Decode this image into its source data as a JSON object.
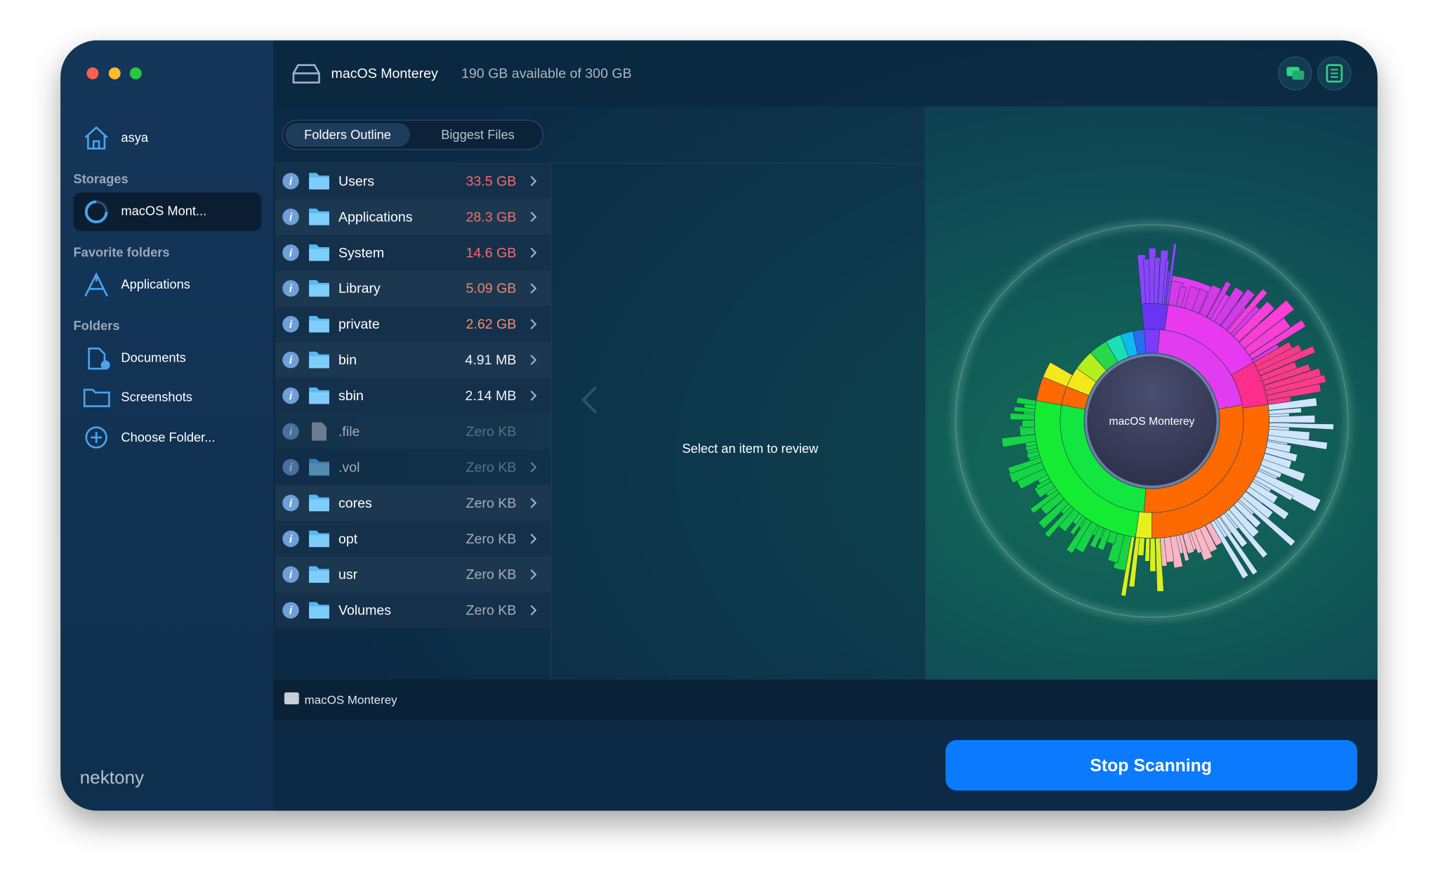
{
  "sidebar": {
    "user": "asya",
    "storages_label": "Storages",
    "storage": "macOS Mont...",
    "favorites_label": "Favorite folders",
    "favorites": [
      "Applications"
    ],
    "folders_label": "Folders",
    "folders": [
      "Documents",
      "Screenshots",
      "Choose Folder..."
    ],
    "logo": "nektony"
  },
  "header": {
    "disk": "macOS Monterey",
    "space": "190 GB available of 300 GB"
  },
  "tabs": [
    "Folders Outline",
    "Biggest Files"
  ],
  "rows": [
    {
      "name": "Users",
      "size": "33.5 GB"
    },
    {
      "name": "Applications",
      "size": "28.3 GB"
    },
    {
      "name": "System",
      "size": "14.6 GB"
    },
    {
      "name": "Library",
      "size": "5.09 GB"
    },
    {
      "name": "private",
      "size": "2.62 GB"
    },
    {
      "name": "bin",
      "size": "4.91 MB"
    },
    {
      "name": "sbin",
      "size": "2.14 MB"
    },
    {
      "name": ".file",
      "size": "Zero KB"
    },
    {
      "name": ".vol",
      "size": "Zero KB"
    },
    {
      "name": "cores",
      "size": "Zero KB"
    },
    {
      "name": "opt",
      "size": "Zero KB"
    },
    {
      "name": "usr",
      "size": "Zero KB"
    },
    {
      "name": "Volumes",
      "size": "Zero KB"
    }
  ],
  "detail": "Select an item to review",
  "chart_center": "macOS Monterey",
  "path": "macOS Monterey",
  "button": "Stop Scanning"
}
